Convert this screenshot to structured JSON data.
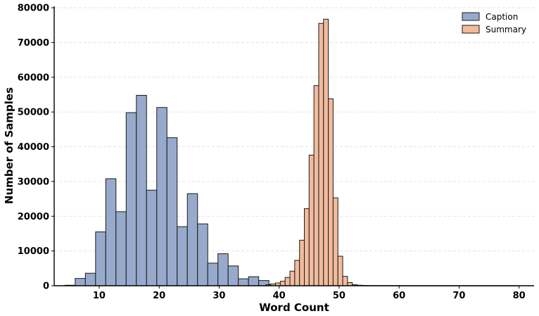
{
  "chart_data": {
    "type": "bar",
    "subtype": "histogram",
    "title": "",
    "xlabel": "Word Count",
    "ylabel": "Number of Samples",
    "xlim": [
      2.5,
      82.5
    ],
    "ylim": [
      0,
      80000
    ],
    "xticks": [
      10,
      20,
      30,
      40,
      50,
      60,
      70,
      80
    ],
    "yticks": [
      0,
      10000,
      20000,
      30000,
      40000,
      50000,
      60000,
      70000,
      80000
    ],
    "grid": "horizontal-dashed",
    "legend_position": "top-right",
    "series": [
      {
        "name": "Caption",
        "color": "#97aacb",
        "bins": [
          {
            "x0": 4.3,
            "x1": 6.0,
            "value": 150
          },
          {
            "x0": 6.0,
            "x1": 7.7,
            "value": 2100
          },
          {
            "x0": 7.7,
            "x1": 9.4,
            "value": 3600
          },
          {
            "x0": 9.4,
            "x1": 11.1,
            "value": 15500
          },
          {
            "x0": 11.1,
            "x1": 12.8,
            "value": 30800
          },
          {
            "x0": 12.8,
            "x1": 14.5,
            "value": 21300
          },
          {
            "x0": 14.5,
            "x1": 16.2,
            "value": 49800
          },
          {
            "x0": 16.2,
            "x1": 17.9,
            "value": 54800
          },
          {
            "x0": 17.9,
            "x1": 19.6,
            "value": 27500
          },
          {
            "x0": 19.6,
            "x1": 21.3,
            "value": 51300
          },
          {
            "x0": 21.3,
            "x1": 23.0,
            "value": 42600
          },
          {
            "x0": 23.0,
            "x1": 24.7,
            "value": 17000
          },
          {
            "x0": 24.7,
            "x1": 26.4,
            "value": 26500
          },
          {
            "x0": 26.4,
            "x1": 28.1,
            "value": 17800
          },
          {
            "x0": 28.1,
            "x1": 29.8,
            "value": 6500
          },
          {
            "x0": 29.8,
            "x1": 31.5,
            "value": 9200
          },
          {
            "x0": 31.5,
            "x1": 33.2,
            "value": 5700
          },
          {
            "x0": 33.2,
            "x1": 34.9,
            "value": 2000
          },
          {
            "x0": 34.9,
            "x1": 36.6,
            "value": 2600
          },
          {
            "x0": 36.6,
            "x1": 38.3,
            "value": 1500
          },
          {
            "x0": 38.3,
            "x1": 40.0,
            "value": 400
          },
          {
            "x0": 40.0,
            "x1": 41.7,
            "value": 120
          }
        ]
      },
      {
        "name": "Summary",
        "color": "#f2bb9d",
        "bins": [
          {
            "x0": 37.8,
            "x1": 38.6,
            "value": 300
          },
          {
            "x0": 38.6,
            "x1": 39.4,
            "value": 500
          },
          {
            "x0": 39.4,
            "x1": 40.2,
            "value": 800
          },
          {
            "x0": 40.2,
            "x1": 41.0,
            "value": 1300
          },
          {
            "x0": 41.0,
            "x1": 41.8,
            "value": 2400
          },
          {
            "x0": 41.8,
            "x1": 42.6,
            "value": 4200
          },
          {
            "x0": 42.6,
            "x1": 43.4,
            "value": 7300
          },
          {
            "x0": 43.4,
            "x1": 44.2,
            "value": 13100
          },
          {
            "x0": 44.2,
            "x1": 45.0,
            "value": 22200
          },
          {
            "x0": 45.0,
            "x1": 45.8,
            "value": 37600
          },
          {
            "x0": 45.8,
            "x1": 46.6,
            "value": 57600
          },
          {
            "x0": 46.6,
            "x1": 47.4,
            "value": 75500
          },
          {
            "x0": 47.4,
            "x1": 48.2,
            "value": 76700
          },
          {
            "x0": 48.2,
            "x1": 49.0,
            "value": 53800
          },
          {
            "x0": 49.0,
            "x1": 49.8,
            "value": 25300
          },
          {
            "x0": 49.8,
            "x1": 50.6,
            "value": 8500
          },
          {
            "x0": 50.6,
            "x1": 51.4,
            "value": 2700
          },
          {
            "x0": 51.4,
            "x1": 52.2,
            "value": 900
          },
          {
            "x0": 52.2,
            "x1": 53.0,
            "value": 300
          },
          {
            "x0": 53.0,
            "x1": 53.8,
            "value": 150
          },
          {
            "x0": 53.8,
            "x1": 54.6,
            "value": 100
          },
          {
            "x0": 54.6,
            "x1": 55.4,
            "value": 60
          },
          {
            "x0": 55.4,
            "x1": 60.0,
            "value": 40
          },
          {
            "x0": 60.0,
            "x1": 80.0,
            "value": 15
          }
        ]
      }
    ]
  }
}
